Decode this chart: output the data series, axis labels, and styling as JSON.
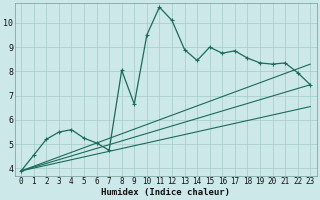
{
  "xlabel": "Humidex (Indice chaleur)",
  "xlim": [
    -0.5,
    23.5
  ],
  "ylim": [
    3.7,
    10.8
  ],
  "xticks": [
    0,
    1,
    2,
    3,
    4,
    5,
    6,
    7,
    8,
    9,
    10,
    11,
    12,
    13,
    14,
    15,
    16,
    17,
    18,
    19,
    20,
    21,
    22,
    23
  ],
  "yticks": [
    4,
    5,
    6,
    7,
    8,
    9,
    10
  ],
  "bg_color": "#cce8e8",
  "line_color": "#1a6b5a",
  "grid_color": "#aacece",
  "main_x": [
    0,
    1,
    2,
    3,
    4,
    5,
    6,
    7,
    8,
    9,
    10,
    11,
    12,
    13,
    14,
    15,
    16,
    17,
    18,
    19,
    20,
    21,
    22,
    23
  ],
  "main_y": [
    3.9,
    4.55,
    5.2,
    5.5,
    5.6,
    5.25,
    5.05,
    4.75,
    8.05,
    6.65,
    9.5,
    10.65,
    10.1,
    8.9,
    8.45,
    9.0,
    8.75,
    8.85,
    8.55,
    8.35,
    8.3,
    8.35,
    7.95,
    7.45
  ],
  "line1_x": [
    0,
    23
  ],
  "line1_y": [
    3.9,
    7.45
  ],
  "line2_x": [
    0,
    23
  ],
  "line2_y": [
    3.9,
    8.3
  ],
  "line3_x": [
    0,
    23
  ],
  "line3_y": [
    3.9,
    6.55
  ]
}
